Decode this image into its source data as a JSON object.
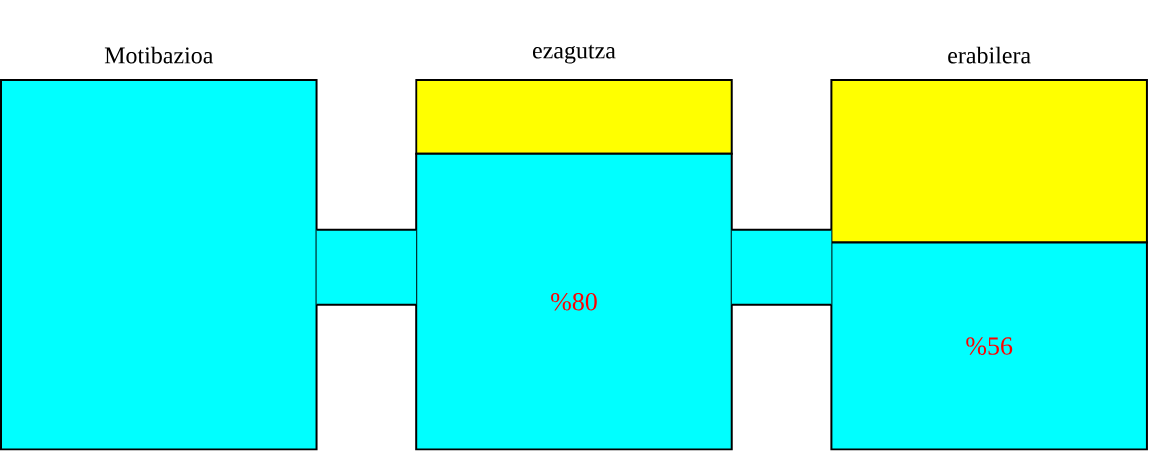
{
  "chart_data": {
    "type": "bar",
    "stacked": true,
    "ylim": [
      0,
      100
    ],
    "categories": [
      "Motibazioa",
      "ezagutza",
      "erabilera"
    ],
    "series": [
      {
        "color": "#00ffff",
        "values": [
          100,
          80,
          56
        ],
        "value_labels": [
          null,
          "%80",
          "%56"
        ]
      },
      {
        "color": "#ffff00",
        "values": [
          0,
          20,
          44
        ]
      }
    ]
  }
}
